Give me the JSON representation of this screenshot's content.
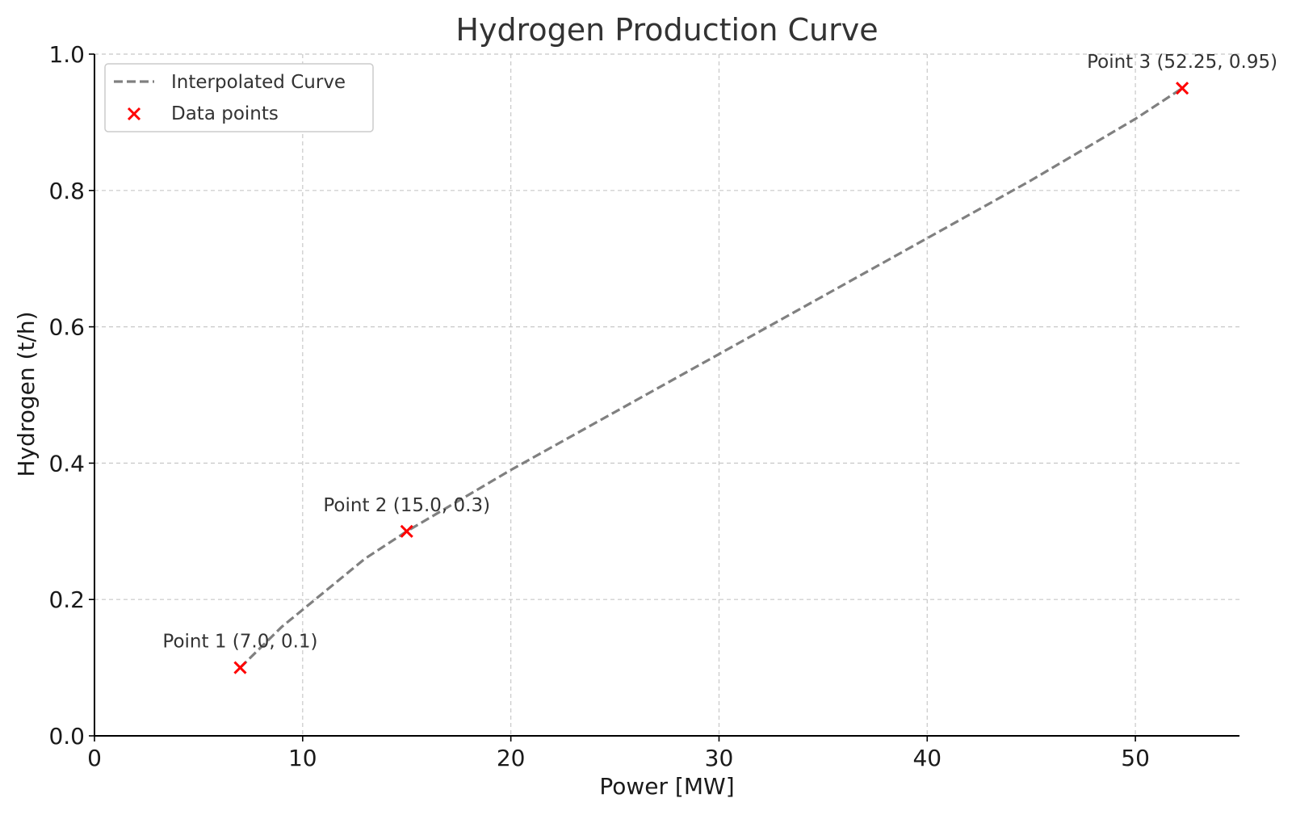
{
  "chart_data": {
    "type": "line",
    "title": "Hydrogen Production Curve",
    "xlabel": "Power [MW]",
    "ylabel": "Hydrogen (t/h)",
    "xlim": [
      0,
      55
    ],
    "ylim": [
      0,
      1.0
    ],
    "x_ticks": [
      0,
      10,
      20,
      30,
      40,
      50
    ],
    "x_tick_labels": [
      "0",
      "10",
      "20",
      "30",
      "40",
      "50"
    ],
    "y_ticks": [
      0,
      0.2,
      0.4,
      0.6,
      0.8,
      1.0
    ],
    "y_tick_labels": [
      "0.0",
      "0.2",
      "0.4",
      "0.6",
      "0.8",
      "1.0"
    ],
    "grid": true,
    "legend_position": "top-left",
    "series": [
      {
        "name": "Interpolated Curve",
        "style": "dashed-line",
        "color": "#808080",
        "x": [
          7.0,
          9.0,
          11.0,
          13.0,
          15.0,
          20.0,
          25.0,
          30.0,
          35.0,
          40.0,
          45.0,
          50.0,
          52.25
        ],
        "y": [
          0.1,
          0.16,
          0.21,
          0.26,
          0.3,
          0.39,
          0.475,
          0.56,
          0.645,
          0.73,
          0.815,
          0.905,
          0.95
        ]
      },
      {
        "name": "Data points",
        "style": "x-marker",
        "color": "#ff0000",
        "x": [
          7.0,
          15.0,
          52.25
        ],
        "y": [
          0.1,
          0.3,
          0.95
        ]
      }
    ],
    "annotations": [
      {
        "text": "Point 1 (7.0, 0.1)",
        "x": 7.0,
        "y": 0.1
      },
      {
        "text": "Point 2 (15.0, 0.3)",
        "x": 15.0,
        "y": 0.3
      },
      {
        "text": "Point 3 (52.25, 0.95)",
        "x": 52.25,
        "y": 0.95
      }
    ]
  }
}
